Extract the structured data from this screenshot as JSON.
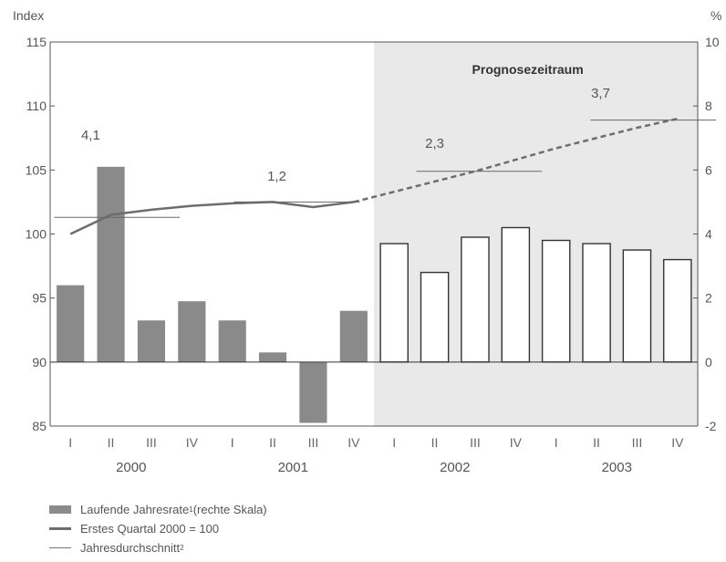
{
  "chart_data": {
    "type": "bar+line",
    "left_axis": {
      "label": "Index",
      "ticks": [
        "115",
        "110",
        "105",
        "100",
        "95",
        "90",
        "85"
      ],
      "ylim": [
        85,
        115
      ]
    },
    "right_axis": {
      "label": "%",
      "ticks": [
        "10",
        "8",
        "6",
        "4",
        "2",
        "0",
        "-2"
      ],
      "ylim": [
        -2,
        10
      ]
    },
    "quarters": [
      "I",
      "II",
      "III",
      "IV",
      "I",
      "II",
      "III",
      "IV",
      "I",
      "II",
      "III",
      "IV",
      "I",
      "II",
      "III",
      "IV"
    ],
    "years": [
      "2000",
      "2001",
      "2002",
      "2003"
    ],
    "forecast_label": "Prognosezeitraum",
    "forecast_start_index": 8,
    "series": [
      {
        "name": "Laufende Jahresrate",
        "axis": "right",
        "type": "bar",
        "values": [
          2.4,
          6.1,
          1.3,
          1.9,
          1.3,
          0.3,
          -1.9,
          1.6,
          3.7,
          2.8,
          3.9,
          4.2,
          3.8,
          3.7,
          3.5,
          3.2
        ]
      },
      {
        "name": "Erstes Quartal 2000 = 100",
        "axis": "left",
        "type": "line",
        "values": [
          100,
          101.5,
          101.9,
          102.2,
          102.4,
          102.5,
          102.1,
          102.5,
          103.3,
          104.1,
          104.9,
          105.8,
          106.7,
          107.5,
          108.3,
          109.0
        ],
        "dashed_from_index": 7
      },
      {
        "name": "Jahresdurchschnitt",
        "axis": "left",
        "type": "step",
        "segments": [
          {
            "year": "2000",
            "value": 101.3
          },
          {
            "year": "2001",
            "value": 102.5
          },
          {
            "year": "2002",
            "value": 104.9
          },
          {
            "year": "2003",
            "value": 108.9
          }
        ]
      }
    ],
    "annotations": [
      "4,1",
      "1,2",
      "2,3",
      "3,7"
    ]
  },
  "legend": [
    {
      "label": "Laufende Jahresrate",
      "sup": "1",
      "suffix": " (rechte Skala)"
    },
    {
      "label": "Erstes Quartal 2000 = 100",
      "sup": "",
      "suffix": ""
    },
    {
      "label": "Jahresdurchschnitt",
      "sup": "2",
      "suffix": ""
    }
  ],
  "colors": {
    "bar_fill": "#8a8a8a",
    "forecast_bg": "#e9e9e9",
    "line": "#6d6d6d",
    "forecast_bar_fill": "#ffffff",
    "forecast_bar_stroke": "#333333"
  }
}
